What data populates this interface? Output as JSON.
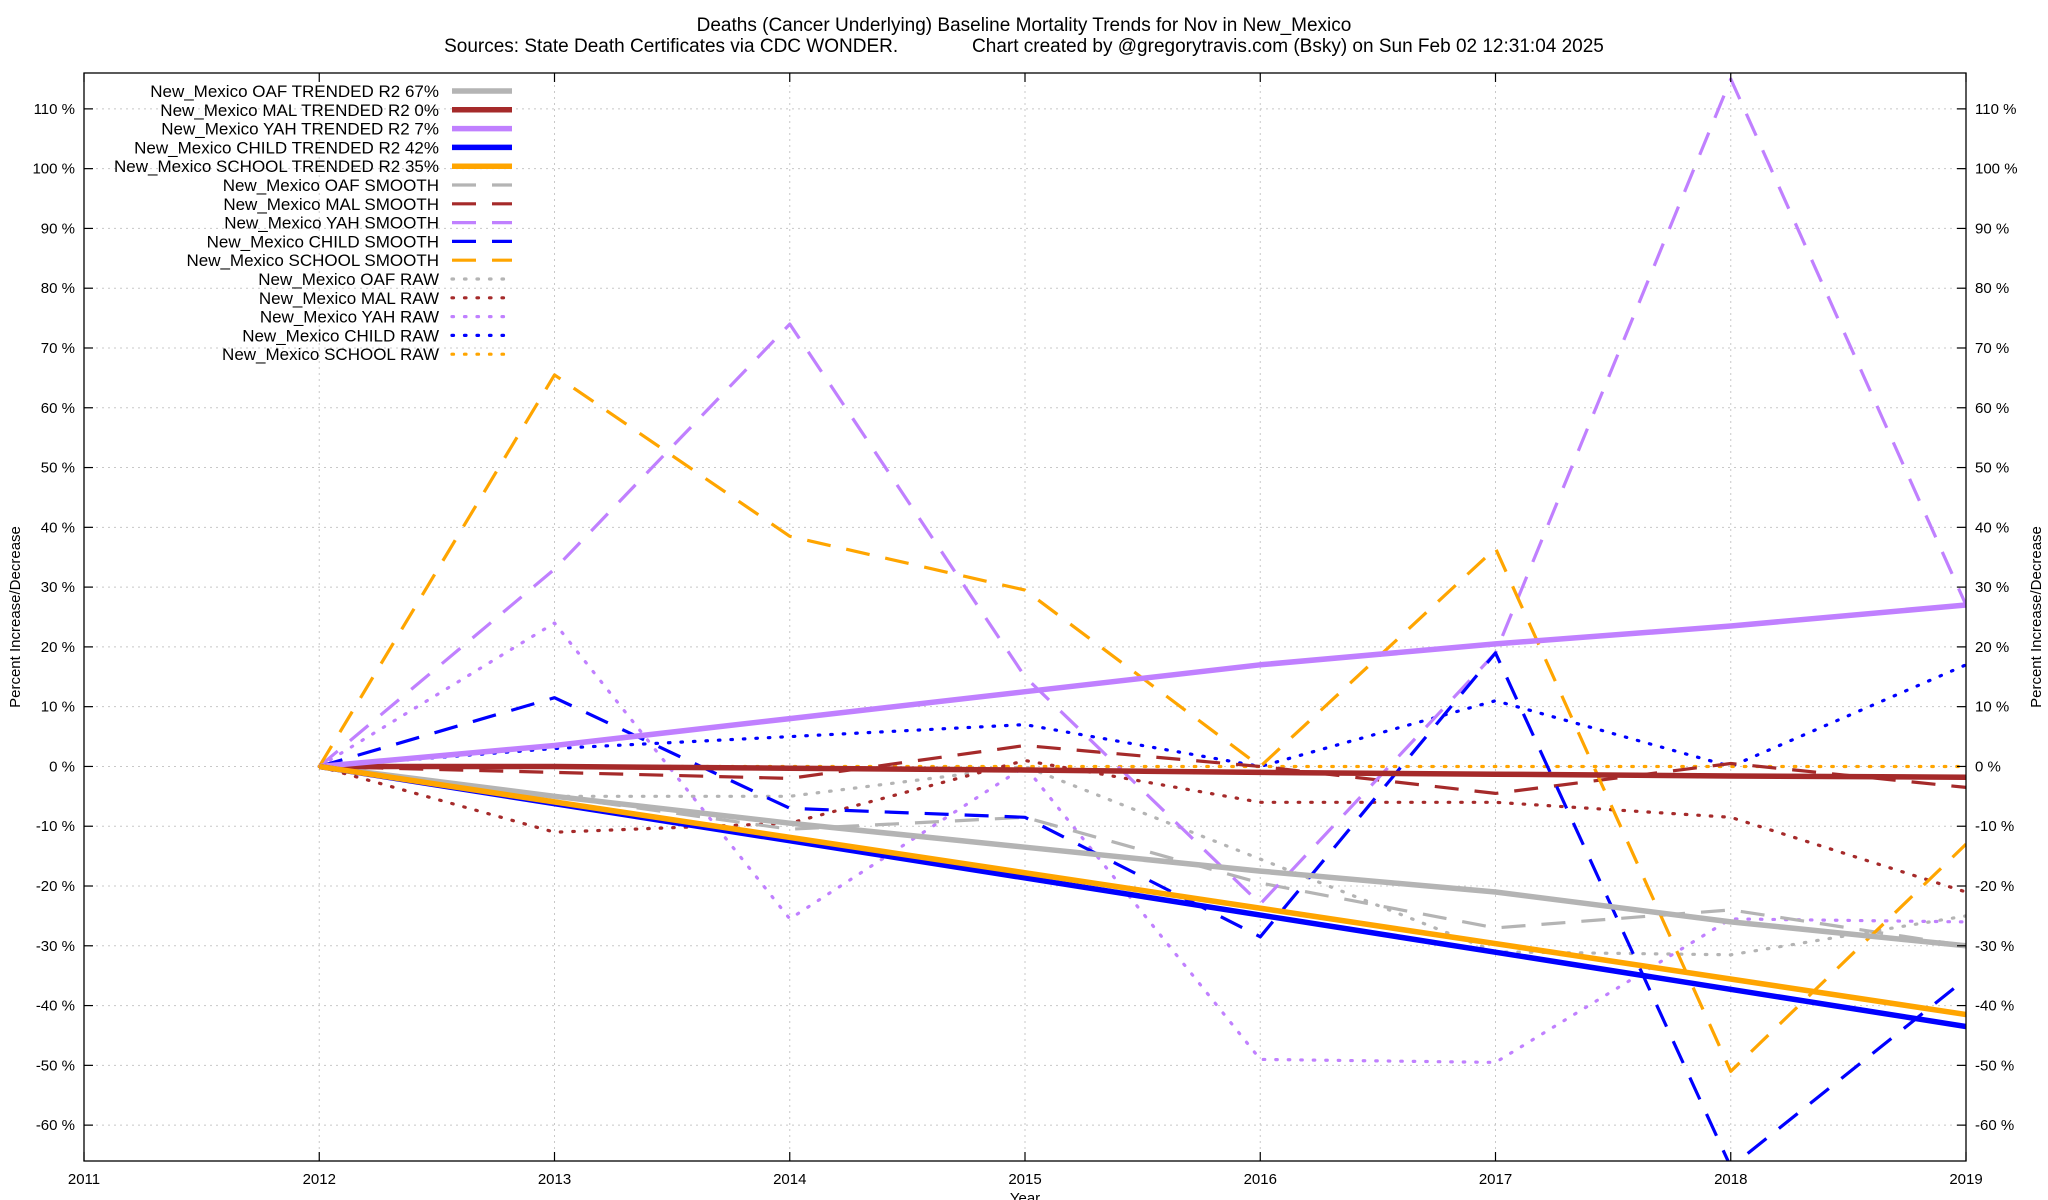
{
  "title_line1": "Deaths (Cancer Underlying)  Baseline Mortality Trends for Nov in New_Mexico",
  "title_line2": "Sources: State Death Certificates via CDC WONDER.              Chart created by @gregorytravis.com (Bsky) on Sun Feb 02 12:31:04 2025",
  "chart_data": {
    "type": "line",
    "xlabel": "Year",
    "ylabel": "Percent Increase/Decrease",
    "y2label": "Percent Increase/Decrease",
    "xlim": [
      2011,
      2019
    ],
    "ylim": [
      -66,
      116
    ],
    "x_ticks": [
      "2011",
      "2012",
      "2013",
      "2014",
      "2015",
      "2016",
      "2017",
      "2018",
      "2019"
    ],
    "y_ticks": [
      {
        "v": 110,
        "label": "110 %"
      },
      {
        "v": 100,
        "label": "100 %"
      },
      {
        "v": 90,
        "label": "90 %"
      },
      {
        "v": 80,
        "label": "80 %"
      },
      {
        "v": 70,
        "label": "70 %"
      },
      {
        "v": 60,
        "label": "60 %"
      },
      {
        "v": 50,
        "label": "50 %"
      },
      {
        "v": 40,
        "label": "40 %"
      },
      {
        "v": 30,
        "label": "30 %"
      },
      {
        "v": 20,
        "label": "20 %"
      },
      {
        "v": 10,
        "label": "10 %"
      },
      {
        "v": 0,
        "label": "0 %"
      },
      {
        "v": -10,
        "label": "-10 %"
      },
      {
        "v": -20,
        "label": "-20 %"
      },
      {
        "v": -30,
        "label": "-30 %"
      },
      {
        "v": -40,
        "label": "-40 %"
      },
      {
        "v": -50,
        "label": "-50 %"
      },
      {
        "v": -60,
        "label": "-60 %"
      }
    ],
    "grid": true,
    "legend_position": "top-left",
    "series": [
      {
        "name": "New_Mexico OAF TRENDED R2  67%",
        "style": "trended",
        "color": "#b4b4b4",
        "x": [
          2012,
          2013,
          2014,
          2015,
          2016,
          2017,
          2018,
          2019
        ],
        "y": [
          0,
          -5,
          -9.5,
          -13.5,
          -17.5,
          -21,
          -26,
          -30
        ]
      },
      {
        "name": "New_Mexico MAL TRENDED R2   0%",
        "style": "trended",
        "color": "#a52a2a",
        "x": [
          2012,
          2013,
          2014,
          2015,
          2016,
          2017,
          2018,
          2019
        ],
        "y": [
          0,
          0,
          -0.3,
          -0.6,
          -1,
          -1.3,
          -1.6,
          -1.8
        ]
      },
      {
        "name": "New_Mexico YAH TRENDED R2   7%",
        "style": "trended",
        "color": "#c080ff",
        "x": [
          2012,
          2013,
          2014,
          2015,
          2016,
          2017,
          2018,
          2019
        ],
        "y": [
          0,
          3.5,
          8,
          12.5,
          17,
          20.5,
          23.5,
          27
        ]
      },
      {
        "name": "New_Mexico CHILD TRENDED R2  42%",
        "style": "trended",
        "color": "#0000ff",
        "x": [
          2012,
          2019
        ],
        "y": [
          0,
          -43.5
        ]
      },
      {
        "name": "New_Mexico SCHOOL TRENDED R2  35%",
        "style": "trended",
        "color": "#ffa500",
        "x": [
          2012,
          2019
        ],
        "y": [
          0,
          -41.5
        ]
      },
      {
        "name": "New_Mexico OAF SMOOTH",
        "style": "smooth",
        "color": "#b4b4b4",
        "x": [
          2012,
          2013,
          2014,
          2015,
          2016,
          2017,
          2018,
          2019
        ],
        "y": [
          0,
          -5,
          -10.5,
          -8.5,
          -19.5,
          -27,
          -24,
          -30
        ]
      },
      {
        "name": "New_Mexico MAL SMOOTH",
        "style": "smooth",
        "color": "#a52a2a",
        "x": [
          2012,
          2013,
          2014,
          2015,
          2016,
          2017,
          2018,
          2019
        ],
        "y": [
          0,
          -1,
          -2,
          3.5,
          0,
          -4.5,
          0.5,
          -3.5
        ]
      },
      {
        "name": "New_Mexico YAH SMOOTH",
        "style": "smooth",
        "color": "#c080ff",
        "x": [
          2012,
          2013,
          2014,
          2015,
          2016,
          2017,
          2018,
          2019
        ],
        "y": [
          0,
          33,
          74,
          15,
          -23,
          19,
          115,
          27
        ]
      },
      {
        "name": "New_Mexico CHILD SMOOTH",
        "style": "smooth",
        "color": "#0000ff",
        "x": [
          2012,
          2013,
          2014,
          2015,
          2016,
          2017,
          2018,
          2019
        ],
        "y": [
          0,
          11.5,
          -7,
          -8.5,
          -28.5,
          19,
          -67,
          -35.5
        ]
      },
      {
        "name": "New_Mexico SCHOOL SMOOTH",
        "style": "smooth",
        "color": "#ffa500",
        "x": [
          2012,
          2013,
          2014,
          2015,
          2016,
          2017,
          2018,
          2019
        ],
        "y": [
          0,
          65.5,
          38.5,
          29.5,
          0,
          36.5,
          -51,
          -13
        ]
      },
      {
        "name": "New_Mexico OAF RAW",
        "style": "raw",
        "color": "#b4b4b4",
        "x": [
          2012,
          2013,
          2014,
          2015,
          2016,
          2017,
          2018,
          2019
        ],
        "y": [
          0,
          -5,
          -5,
          0,
          -15.5,
          -31,
          -31.5,
          -25
        ]
      },
      {
        "name": "New_Mexico MAL RAW",
        "style": "raw",
        "color": "#a52a2a",
        "x": [
          2012,
          2013,
          2014,
          2015,
          2016,
          2017,
          2018,
          2019
        ],
        "y": [
          0,
          -11,
          -9.5,
          1,
          -6,
          -6,
          -8.5,
          -21
        ]
      },
      {
        "name": "New_Mexico YAH RAW",
        "style": "raw",
        "color": "#c080ff",
        "x": [
          2012,
          2013,
          2014,
          2015,
          2016,
          2017,
          2018,
          2019
        ],
        "y": [
          0,
          24,
          -25.5,
          0,
          -49,
          -49.5,
          -25.5,
          -26
        ]
      },
      {
        "name": "New_Mexico CHILD RAW",
        "style": "raw",
        "color": "#0000ff",
        "x": [
          2012,
          2013,
          2014,
          2015,
          2016,
          2017,
          2018,
          2019
        ],
        "y": [
          0,
          3,
          5,
          7,
          0,
          11,
          0,
          17
        ]
      },
      {
        "name": "New_Mexico SCHOOL RAW",
        "style": "raw",
        "color": "#ffa500",
        "x": [
          2012,
          2013,
          2014,
          2015,
          2016,
          2017,
          2018,
          2019
        ],
        "y": [
          0,
          0,
          0,
          0,
          0,
          0,
          0,
          0
        ]
      }
    ]
  }
}
